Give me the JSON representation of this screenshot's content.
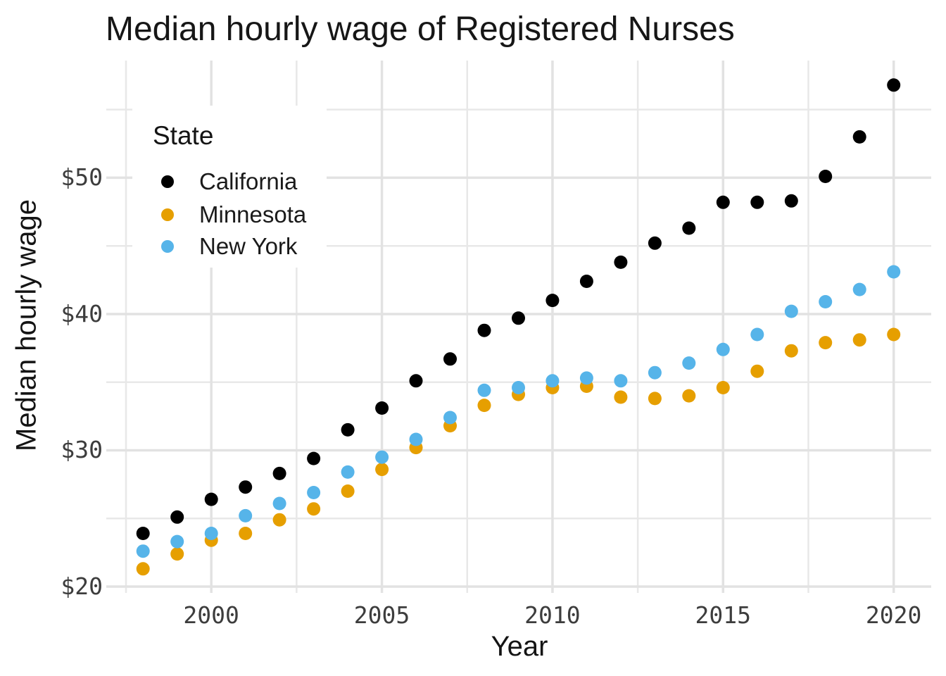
{
  "page": {
    "background": "#ffffff"
  },
  "chart_data": {
    "type": "scatter",
    "title": "Median hourly wage of Registered Nurses",
    "xlabel": "Year",
    "ylabel": "Median hourly wage",
    "legend_title": "State",
    "legend_position": "inside-top-left",
    "grid": "major+minor",
    "x": [
      1998,
      1999,
      2000,
      2001,
      2002,
      2003,
      2004,
      2005,
      2006,
      2007,
      2008,
      2009,
      2010,
      2011,
      2012,
      2013,
      2014,
      2015,
      2016,
      2017,
      2018,
      2019,
      2020
    ],
    "series": [
      {
        "name": "California",
        "color": "#000000",
        "values": [
          23.9,
          25.1,
          26.4,
          27.3,
          28.3,
          29.4,
          31.5,
          33.1,
          35.1,
          36.7,
          38.8,
          39.7,
          41.0,
          42.4,
          43.8,
          45.2,
          46.3,
          48.2,
          48.2,
          48.3,
          50.1,
          53.0,
          56.8
        ]
      },
      {
        "name": "Minnesota",
        "color": "#E69F00",
        "values": [
          21.3,
          22.4,
          23.4,
          23.9,
          24.9,
          25.7,
          27.0,
          28.6,
          30.2,
          31.8,
          33.3,
          34.1,
          34.6,
          34.7,
          33.9,
          33.8,
          34.0,
          34.6,
          35.8,
          37.3,
          37.9,
          38.1,
          38.5
        ]
      },
      {
        "name": "New York",
        "color": "#56B4E9",
        "values": [
          22.6,
          23.3,
          23.9,
          25.2,
          26.1,
          26.9,
          28.4,
          29.5,
          30.8,
          32.4,
          34.4,
          34.6,
          35.1,
          35.3,
          35.1,
          35.7,
          36.4,
          37.4,
          38.5,
          40.2,
          40.9,
          41.8,
          43.1
        ]
      }
    ],
    "x_axis": {
      "range": [
        1997.5,
        2021.1
      ],
      "ticks": [
        2000,
        2005,
        2010,
        2015,
        2020
      ],
      "tick_labels": [
        "2000",
        "2005",
        "2010",
        "2015",
        "2020"
      ],
      "minor_ticks": [
        1997.5,
        2002.5,
        2007.5,
        2012.5,
        2017.5
      ]
    },
    "y_axis": {
      "range": [
        20,
        58.6
      ],
      "ticks": [
        20,
        30,
        40,
        50
      ],
      "tick_labels": [
        "$20",
        "$30",
        "$40",
        "$50"
      ],
      "minor_ticks": [
        25,
        35,
        45,
        55
      ]
    },
    "style": {
      "grid_major_color": "#E2E2E2",
      "grid_minor_color": "#E8E8E8",
      "tick_text_color": "#3d3d3d",
      "title_color": "#161616",
      "point_radius": 9.5
    }
  }
}
